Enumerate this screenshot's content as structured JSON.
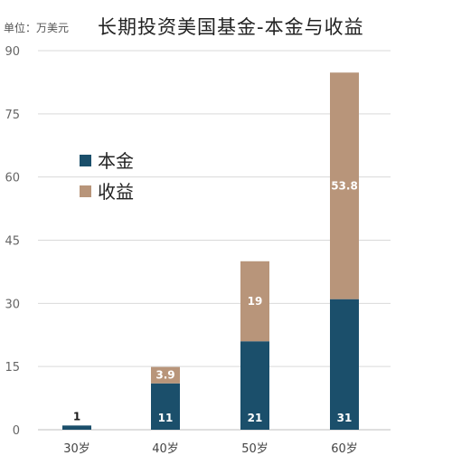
{
  "header": {
    "unit_label": "单位：万美元",
    "title": "长期投资美国基金-本金与收益"
  },
  "colors": {
    "principal": "#1b4f6b",
    "gain": "#b8957a",
    "grid": "#d9d9d9"
  },
  "chart_data": {
    "type": "bar",
    "stacked": true,
    "title": "长期投资美国基金-本金与收益",
    "unit": "单位：万美元",
    "categories": [
      "30岁",
      "40岁",
      "50岁",
      "60岁"
    ],
    "series": [
      {
        "name": "本金",
        "values": [
          1,
          11,
          21,
          31
        ],
        "labels": [
          "1",
          "11",
          "21",
          "31"
        ]
      },
      {
        "name": "收益",
        "values": [
          0,
          3.9,
          19,
          53.8
        ],
        "labels": [
          "",
          "3.9",
          "19",
          "53.8"
        ]
      }
    ],
    "ylim": [
      0,
      90
    ],
    "yticks": [
      0,
      15,
      30,
      45,
      60,
      75,
      90
    ],
    "grid": true,
    "legend_position": "left-middle"
  }
}
